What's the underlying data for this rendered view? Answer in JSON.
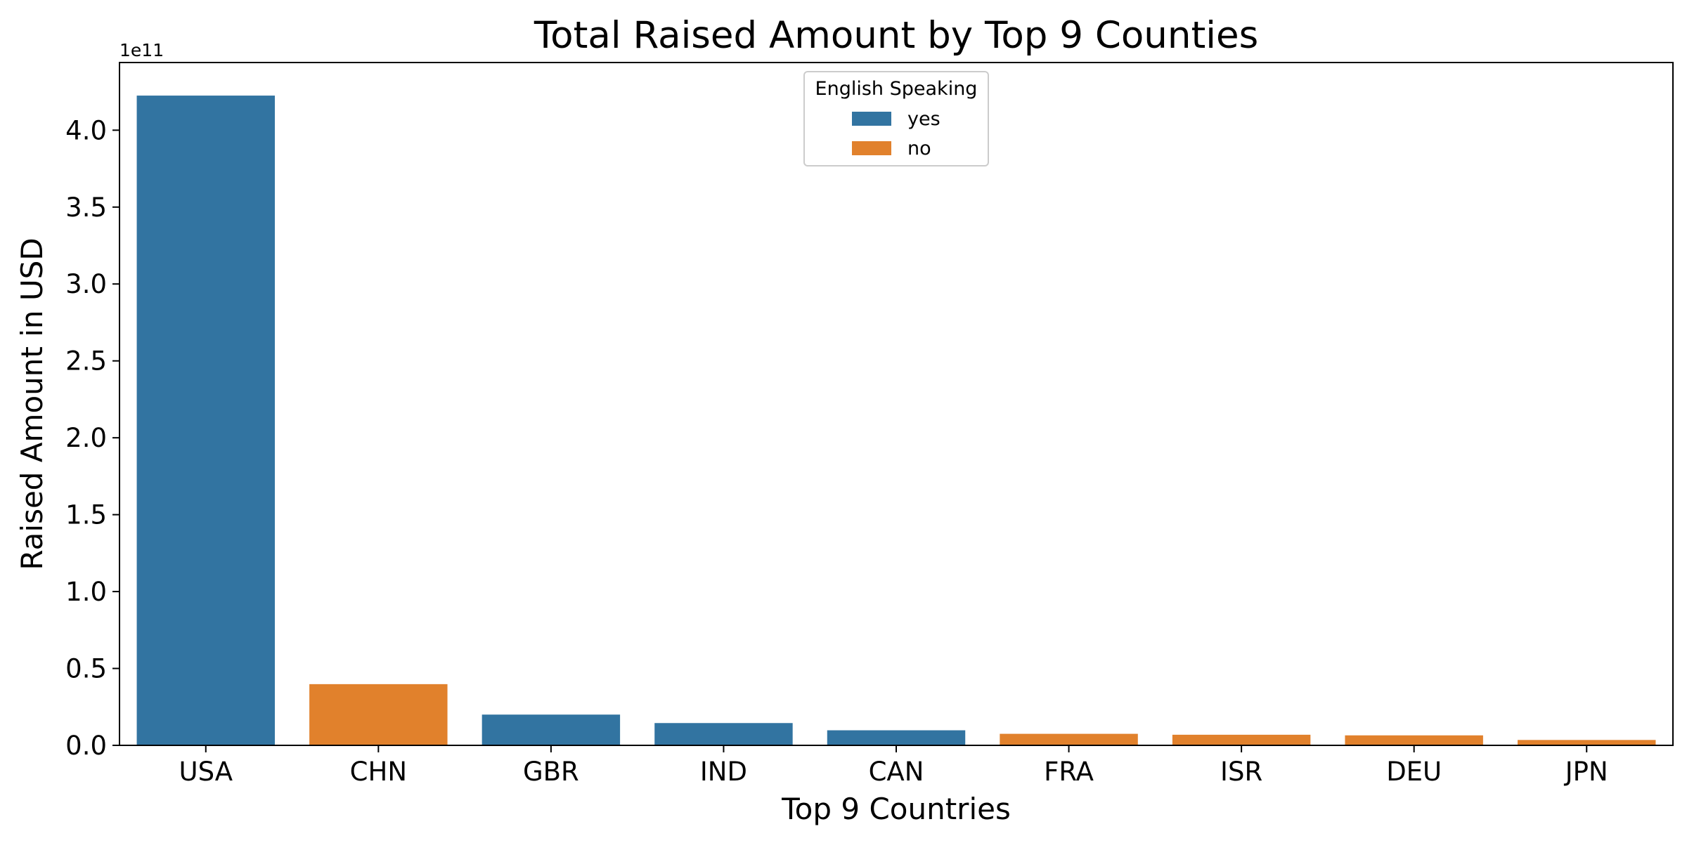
{
  "chart_data": {
    "type": "bar",
    "title": "Total Raised Amount by Top 9 Counties",
    "xlabel": "Top 9 Countries",
    "ylabel": "Raised Amount in USD",
    "y_offset_label": "1e11",
    "y_scale": 100000000000,
    "categories": [
      "USA",
      "CHN",
      "GBR",
      "IND",
      "CAN",
      "FRA",
      "ISR",
      "DEU",
      "JPN"
    ],
    "values": [
      422500000000,
      39800000000,
      20000000000,
      14500000000,
      9800000000,
      7500000000,
      6900000000,
      6500000000,
      3500000000
    ],
    "english_speaking": [
      "yes",
      "no",
      "yes",
      "yes",
      "yes",
      "no",
      "no",
      "no",
      "no"
    ],
    "ylim": [
      0,
      444000000000
    ],
    "yticks": [
      0,
      50000000000,
      100000000000,
      150000000000,
      200000000000,
      250000000000,
      300000000000,
      350000000000,
      400000000000
    ],
    "ytick_labels": [
      "0.0",
      "0.5",
      "1.0",
      "1.5",
      "2.0",
      "2.5",
      "3.0",
      "3.5",
      "4.0"
    ],
    "legend": {
      "title": "English Speaking",
      "placement": "top-center",
      "entries": [
        {
          "label": "yes",
          "color": "#3274a1"
        },
        {
          "label": "no",
          "color": "#e1812c"
        }
      ]
    },
    "colors": {
      "yes": "#3274a1",
      "no": "#e1812c"
    },
    "grid": false
  }
}
